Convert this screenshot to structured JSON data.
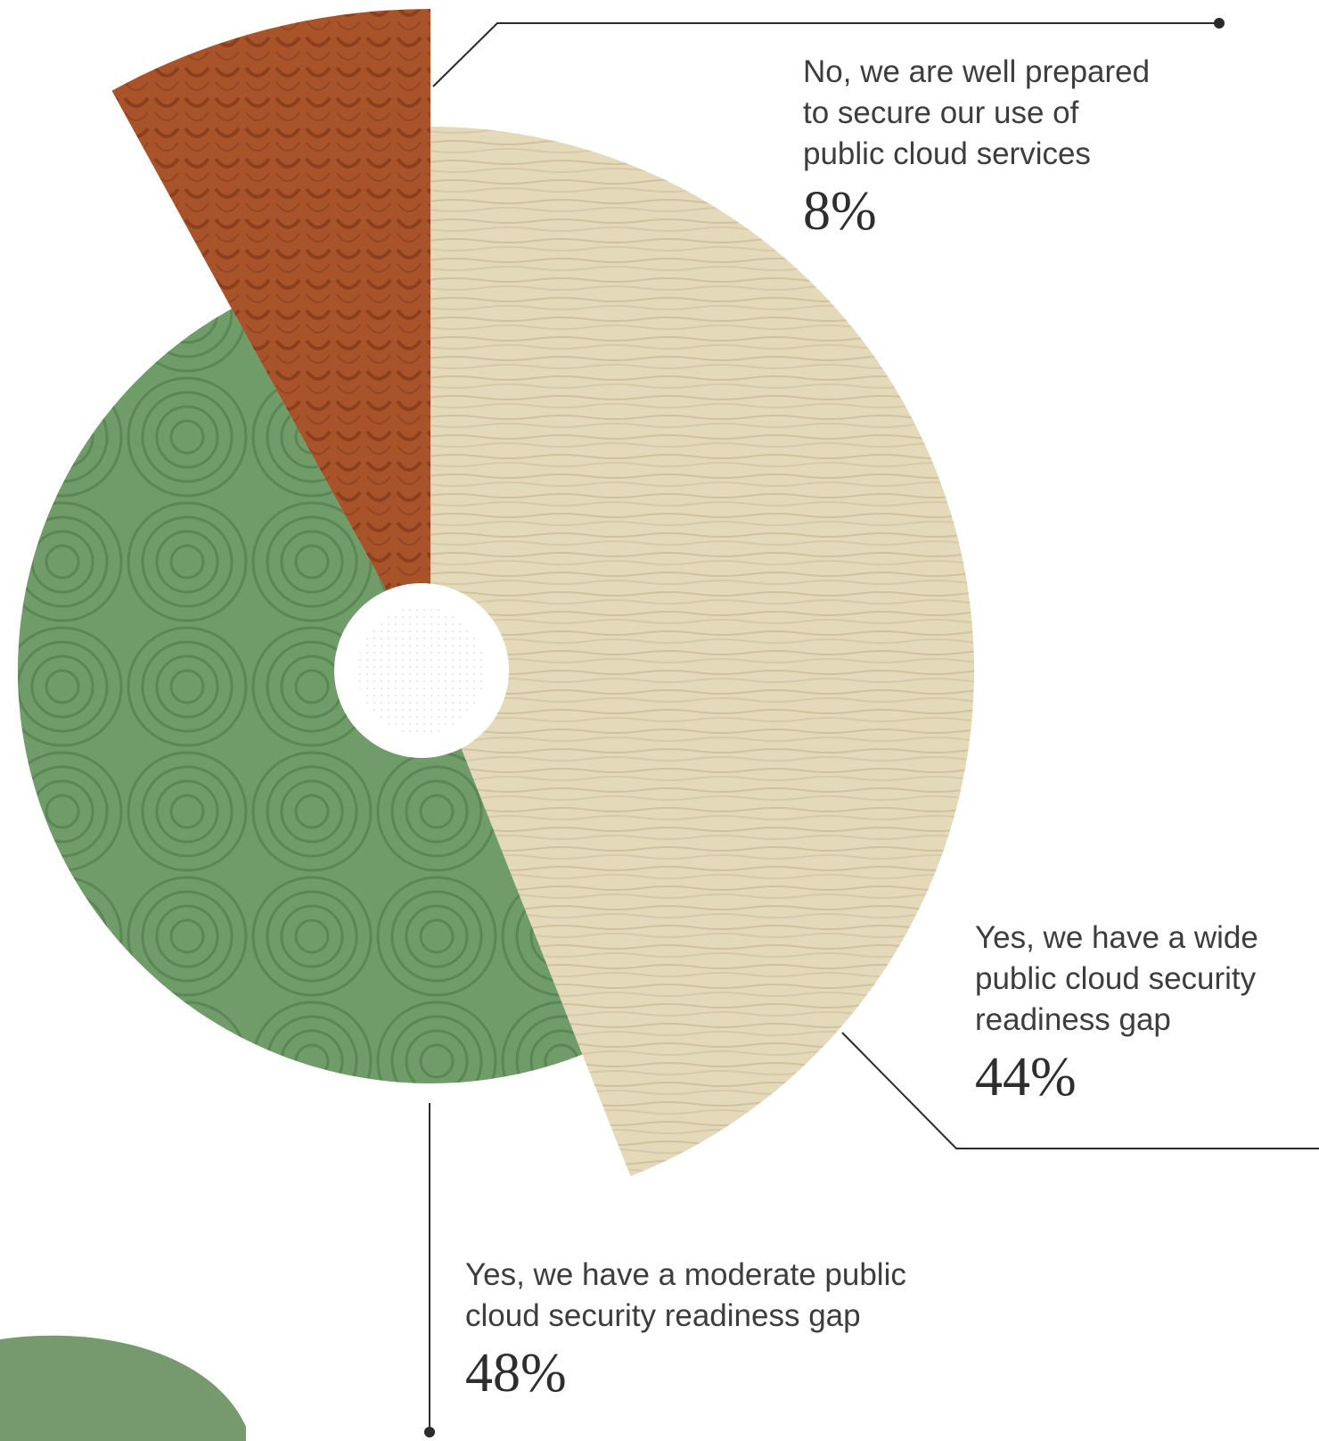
{
  "chart_data": {
    "type": "pie",
    "variant": "radial-variable-radius-donut",
    "slices": [
      {
        "label": "No, we are well prepared to secure our use of public cloud services",
        "value": 8,
        "value_text": "8%",
        "color": "#a9532b"
      },
      {
        "label": "Yes, we have a wide public cloud security readiness gap",
        "value": 44,
        "value_text": "44%",
        "color": "#e4d9b9"
      },
      {
        "label": "Yes, we have a moderate public cloud security readiness gap",
        "value": 48,
        "value_text": "48%",
        "color": "#6f9c68"
      }
    ],
    "legend": "callouts"
  },
  "labels": {
    "no_prepared": {
      "text": "No, we are well prepared\nto secure our use of\npublic cloud services",
      "value": "8%"
    },
    "wide_gap": {
      "text": "Yes, we have a wide\npublic cloud security\nreadiness gap",
      "value": "44%"
    },
    "moderate_gap": {
      "text": "Yes, we have a moderate public\ncloud security readiness gap",
      "value": "48%"
    }
  },
  "colors": {
    "rust": "#a9532b",
    "rust_pattern": "#8c3f1c",
    "beige": "#e4d9b9",
    "beige_pattern": "#cfc29e",
    "green": "#6f9c68",
    "green_pattern": "#5a8754",
    "leader_line": "#2b2b2b",
    "decor_blob": "#76996e"
  }
}
